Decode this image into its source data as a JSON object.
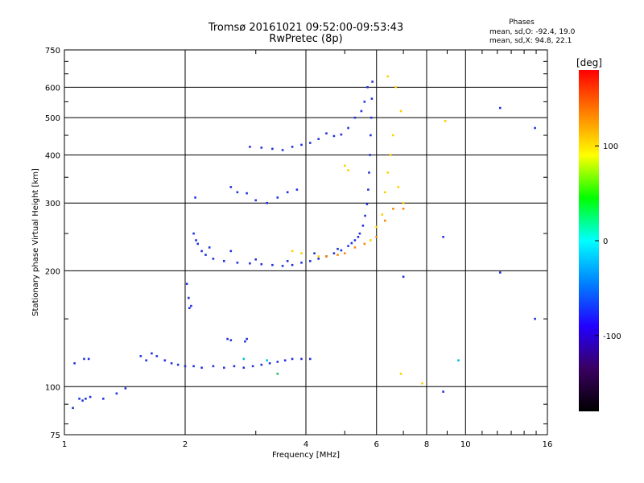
{
  "chart_data": {
    "type": "scatter",
    "title": "Tromsø 20161021 09:52:00-09:53:43",
    "subtitle": "RwPretec (8p)",
    "xlabel": "Frequency [MHz]",
    "ylabel": "Stationary phase Virtual Height [km]",
    "x_scale": "log",
    "y_scale": "log",
    "xlim": [
      1,
      16
    ],
    "ylim": [
      75,
      750
    ],
    "x_ticks": [
      1,
      2,
      4,
      6,
      8,
      10,
      16
    ],
    "y_ticks": [
      75,
      100,
      200,
      300,
      400,
      500,
      600,
      750
    ],
    "grid": true,
    "info": {
      "heading": "Phases",
      "line1": "mean, sd,O: -92.4, 19.0",
      "line2": "mean, sd,X:  94.8, 22.1"
    },
    "colorbar": {
      "label": "[deg]",
      "ticks": [
        100,
        0,
        -100
      ],
      "range": [
        -180,
        180
      ],
      "colors": [
        "#000000",
        "#3a0060",
        "#2200ff",
        "#0080ff",
        "#00ffff",
        "#00ff00",
        "#ffff00",
        "#ff8000",
        "#ff0000"
      ]
    },
    "series": [
      {
        "color": "#2233dd",
        "points": [
          [
            1.05,
            88
          ],
          [
            1.09,
            93
          ],
          [
            1.11,
            92
          ],
          [
            1.13,
            93
          ],
          [
            1.16,
            94
          ],
          [
            1.25,
            93
          ],
          [
            1.35,
            96
          ],
          [
            1.42,
            99
          ],
          [
            1.06,
            115
          ],
          [
            1.12,
            118
          ],
          [
            1.15,
            118
          ],
          [
            1.55,
            120
          ],
          [
            1.6,
            117
          ],
          [
            1.65,
            122
          ],
          [
            1.7,
            120
          ],
          [
            1.78,
            117
          ],
          [
            1.85,
            115
          ],
          [
            1.92,
            114
          ],
          [
            2.0,
            113
          ],
          [
            2.1,
            113
          ],
          [
            2.2,
            112
          ],
          [
            2.35,
            113
          ],
          [
            2.5,
            112
          ],
          [
            2.65,
            113
          ],
          [
            2.8,
            112
          ],
          [
            2.95,
            113
          ],
          [
            3.1,
            114
          ],
          [
            3.25,
            115
          ],
          [
            3.4,
            116
          ],
          [
            3.55,
            117
          ],
          [
            3.7,
            118
          ],
          [
            3.9,
            118
          ],
          [
            4.1,
            118
          ],
          [
            2.02,
            185
          ],
          [
            2.04,
            170
          ],
          [
            2.05,
            160
          ],
          [
            2.07,
            162
          ],
          [
            2.55,
            133
          ],
          [
            2.6,
            132
          ],
          [
            2.82,
            131
          ],
          [
            2.85,
            133
          ],
          [
            2.1,
            250
          ],
          [
            2.13,
            240
          ],
          [
            2.15,
            235
          ],
          [
            2.2,
            225
          ],
          [
            2.25,
            220
          ],
          [
            2.35,
            215
          ],
          [
            2.5,
            212
          ],
          [
            2.7,
            210
          ],
          [
            2.9,
            209
          ],
          [
            3.1,
            208
          ],
          [
            3.3,
            207
          ],
          [
            3.5,
            206
          ],
          [
            3.7,
            207
          ],
          [
            3.9,
            210
          ],
          [
            4.1,
            212
          ],
          [
            4.3,
            215
          ],
          [
            4.5,
            218
          ],
          [
            4.7,
            222
          ],
          [
            4.9,
            226
          ],
          [
            5.1,
            232
          ],
          [
            5.3,
            240
          ],
          [
            5.45,
            250
          ],
          [
            5.55,
            262
          ],
          [
            5.62,
            278
          ],
          [
            5.68,
            298
          ],
          [
            5.72,
            325
          ],
          [
            5.75,
            360
          ],
          [
            5.78,
            400
          ],
          [
            5.8,
            450
          ],
          [
            5.82,
            500
          ],
          [
            5.84,
            560
          ],
          [
            5.86,
            620
          ],
          [
            2.3,
            230
          ],
          [
            2.6,
            225
          ],
          [
            3.0,
            214
          ],
          [
            3.6,
            212
          ],
          [
            4.2,
            222
          ],
          [
            4.8,
            228
          ],
          [
            5.2,
            236
          ],
          [
            5.4,
            245
          ],
          [
            2.12,
            310
          ],
          [
            2.6,
            330
          ],
          [
            2.7,
            320
          ],
          [
            2.85,
            318
          ],
          [
            3.0,
            305
          ],
          [
            3.2,
            300
          ],
          [
            3.4,
            310
          ],
          [
            3.6,
            320
          ],
          [
            3.8,
            325
          ],
          [
            2.9,
            420
          ],
          [
            3.1,
            418
          ],
          [
            3.3,
            415
          ],
          [
            3.5,
            412
          ],
          [
            3.7,
            420
          ],
          [
            3.9,
            425
          ],
          [
            4.1,
            430
          ],
          [
            4.3,
            440
          ],
          [
            4.5,
            455
          ],
          [
            4.7,
            448
          ],
          [
            4.9,
            452
          ],
          [
            5.1,
            470
          ],
          [
            5.3,
            500
          ],
          [
            5.5,
            520
          ],
          [
            5.6,
            550
          ],
          [
            5.7,
            600
          ],
          [
            8.8,
            245
          ],
          [
            7.0,
            193
          ],
          [
            12.2,
            198
          ],
          [
            14.9,
            150
          ],
          [
            12.2,
            530
          ],
          [
            14.9,
            470
          ],
          [
            8.8,
            97
          ]
        ]
      },
      {
        "color": "#ffd000",
        "points": [
          [
            3.7,
            225
          ],
          [
            3.9,
            222
          ],
          [
            4.3,
            218
          ],
          [
            5.8,
            240
          ],
          [
            6.0,
            260
          ],
          [
            6.2,
            280
          ],
          [
            6.3,
            320
          ],
          [
            6.4,
            360
          ],
          [
            6.5,
            400
          ],
          [
            6.6,
            450
          ],
          [
            6.8,
            330
          ],
          [
            7.0,
            300
          ],
          [
            6.4,
            640
          ],
          [
            6.7,
            600
          ],
          [
            6.9,
            520
          ],
          [
            5.0,
            375
          ],
          [
            5.1,
            365
          ],
          [
            7.8,
            102
          ],
          [
            6.9,
            108
          ],
          [
            8.9,
            490
          ]
        ]
      },
      {
        "color": "#ff8800",
        "points": [
          [
            4.5,
            218
          ],
          [
            4.8,
            220
          ],
          [
            5.0,
            222
          ],
          [
            5.3,
            230
          ],
          [
            5.6,
            235
          ],
          [
            6.0,
            245
          ],
          [
            6.3,
            270
          ],
          [
            6.6,
            290
          ],
          [
            7.0,
            290
          ]
        ]
      },
      {
        "color": "#00c0e0",
        "points": [
          [
            9.6,
            117
          ],
          [
            2.8,
            118
          ],
          [
            3.2,
            117
          ]
        ]
      },
      {
        "color": "#20c060",
        "points": [
          [
            3.4,
            108
          ]
        ]
      }
    ]
  }
}
